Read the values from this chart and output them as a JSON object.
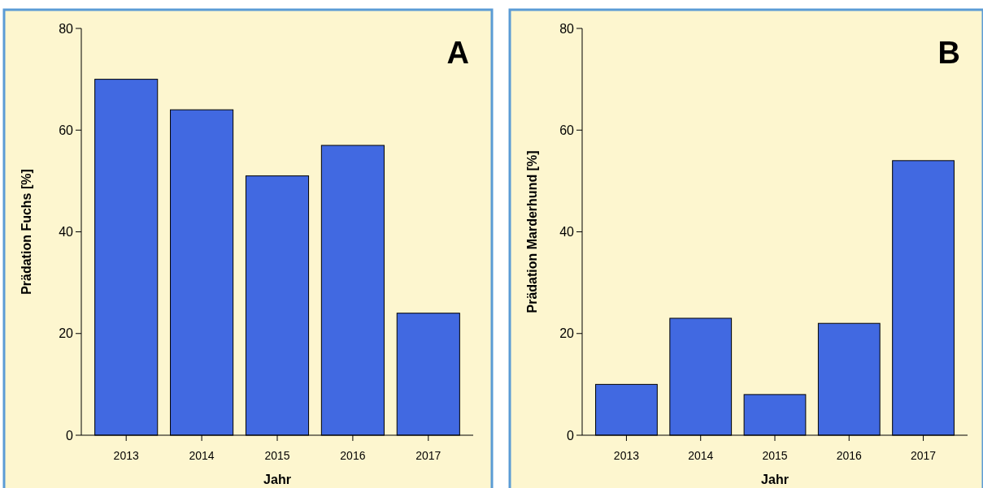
{
  "chart_data": [
    {
      "type": "bar",
      "title": "A",
      "xlabel": "Jahr",
      "ylabel": "Prädation Fuchs [%]",
      "categories": [
        "2013",
        "2014",
        "2015",
        "2016",
        "2017"
      ],
      "values": [
        70,
        64,
        51,
        57,
        24
      ],
      "color": "#4169e1",
      "ylim": [
        0,
        80
      ],
      "yticks": [
        0,
        20,
        40,
        60,
        80
      ],
      "grid": false
    },
    {
      "type": "bar",
      "title": "B",
      "xlabel": "Jahr",
      "ylabel": "Prädation Marderhund [%]",
      "categories": [
        "2013",
        "2014",
        "2015",
        "2016",
        "2017"
      ],
      "values": [
        10,
        23,
        8,
        22,
        54
      ],
      "color": "#4169e1",
      "ylim": [
        0,
        80
      ],
      "yticks": [
        0,
        20,
        40,
        60,
        80
      ],
      "grid": false
    }
  ]
}
